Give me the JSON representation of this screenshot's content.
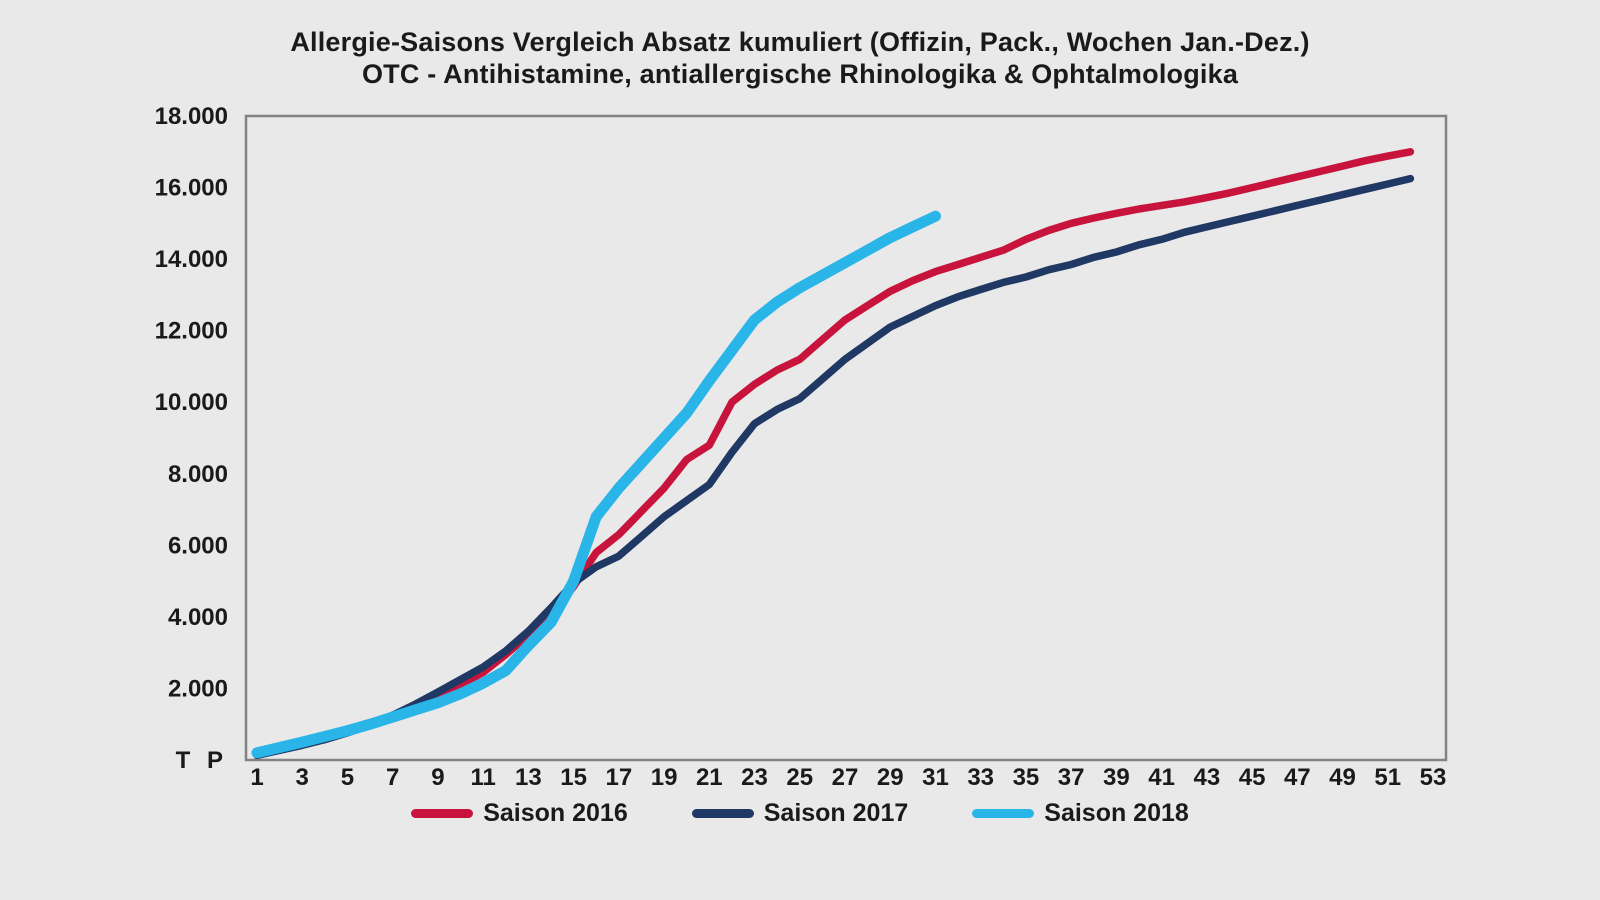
{
  "title": {
    "line1": "Allergie-Saisons Vergleich Absatz kumuliert (Offizin, Pack., Wochen Jan.-Dez.)",
    "line2": "OTC - Antihistamine, antiallergische Rhinologika & Ophtalmologika"
  },
  "colors": {
    "background": "#e9e9e9",
    "plot_border": "#828282",
    "text": "#1a1a1a"
  },
  "chart_data": {
    "type": "line",
    "title": "Allergie-Saisons Vergleich Absatz kumuliert (Offizin, Pack., Wochen Jan.-Dez.) OTC - Antihistamine, antiallergische Rhinologika & Ophtalmologika",
    "xlabel": "",
    "ylabel": "T P",
    "grid": false,
    "legend_position": "bottom",
    "x_axis": {
      "min": 1,
      "max": 53,
      "tick_weeks": [
        1,
        3,
        5,
        7,
        9,
        11,
        13,
        15,
        17,
        19,
        21,
        23,
        25,
        27,
        29,
        31,
        33,
        35,
        37,
        39,
        41,
        43,
        45,
        47,
        49,
        51,
        53
      ]
    },
    "y_axis": {
      "min": 0,
      "max": 18000,
      "tick_values": [
        0,
        2000,
        4000,
        6000,
        8000,
        10000,
        12000,
        14000,
        16000,
        18000
      ],
      "tick_labels": [
        "T P",
        "2.000",
        "4.000",
        "6.000",
        "8.000",
        "10.000",
        "12.000",
        "14.000",
        "16.000",
        "18.000"
      ]
    },
    "series": [
      {
        "name": "Saison 2016",
        "color": "#c8143c",
        "stroke_width": 7.5,
        "start_week": 1,
        "values": [
          150,
          300,
          450,
          620,
          800,
          1000,
          1250,
          1520,
          1800,
          2100,
          2450,
          2950,
          3500,
          4050,
          4850,
          5800,
          6300,
          6950,
          7600,
          8400,
          8800,
          10000,
          10500,
          10900,
          11200,
          11750,
          12300,
          12700,
          13100,
          13400,
          13650,
          13850,
          14050,
          14250,
          14550,
          14800,
          15000,
          15150,
          15280,
          15400,
          15500,
          15600,
          15720,
          15850,
          16000,
          16150,
          16300,
          16450,
          16600,
          16750,
          16880,
          17000
        ]
      },
      {
        "name": "Saison 2017",
        "color": "#1f3864",
        "stroke_width": 7.5,
        "start_week": 1,
        "values": [
          130,
          270,
          410,
          570,
          760,
          980,
          1250,
          1560,
          1900,
          2250,
          2600,
          3050,
          3600,
          4250,
          4950,
          5400,
          5700,
          6250,
          6800,
          7250,
          7700,
          8600,
          9400,
          9800,
          10100,
          10650,
          11200,
          11650,
          12100,
          12400,
          12700,
          12950,
          13150,
          13350,
          13500,
          13700,
          13850,
          14050,
          14200,
          14400,
          14550,
          14750,
          14900,
          15050,
          15200,
          15350,
          15500,
          15650,
          15800,
          15950,
          16100,
          16250
        ]
      },
      {
        "name": "Saison 2018",
        "color": "#29b5e8",
        "stroke_width": 11,
        "start_week": 1,
        "values": [
          200,
          350,
          500,
          660,
          820,
          1000,
          1200,
          1400,
          1600,
          1850,
          2150,
          2500,
          3200,
          3850,
          5000,
          6800,
          7600,
          8300,
          9000,
          9700,
          10600,
          11450,
          12300,
          12800,
          13200,
          13550,
          13900,
          14250,
          14600,
          14900,
          15200
        ]
      }
    ]
  }
}
